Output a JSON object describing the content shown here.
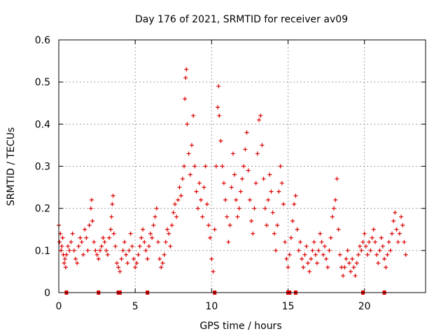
{
  "chart_data": {
    "type": "scatter",
    "title": "Day 176 of 2021, SRMTID for receiver av09",
    "xlabel": "GPS time / hours",
    "ylabel": "SRMTID / TECUs",
    "xlim": [
      0,
      24
    ],
    "ylim": [
      0,
      0.6
    ],
    "x_ticks": [
      0,
      5,
      10,
      15,
      20
    ],
    "x_tick_labels": [
      "0",
      "5",
      "10",
      "15",
      "20"
    ],
    "y_ticks": [
      0,
      0.1,
      0.2,
      0.3,
      0.4,
      0.5,
      0.6
    ],
    "y_tick_labels": [
      "0",
      "0.1",
      "0.2",
      "0.3",
      "0.4",
      "0.5",
      "0.6"
    ],
    "grid": true,
    "marker": "+",
    "series": [
      {
        "name": "SRMTID",
        "color": "#dd0000",
        "points": [
          [
            0.0,
            0.16
          ],
          [
            0.05,
            0.12
          ],
          [
            0.1,
            0.14
          ],
          [
            0.15,
            0.1
          ],
          [
            0.2,
            0.11
          ],
          [
            0.25,
            0.13
          ],
          [
            0.3,
            0.09
          ],
          [
            0.35,
            0.07
          ],
          [
            0.4,
            0.08
          ],
          [
            0.45,
            0.06
          ],
          [
            0.5,
            0.09
          ],
          [
            0.6,
            0.11
          ],
          [
            0.7,
            0.1
          ],
          [
            0.8,
            0.12
          ],
          [
            0.9,
            0.14
          ],
          [
            1.0,
            0.1
          ],
          [
            1.1,
            0.08
          ],
          [
            1.2,
            0.07
          ],
          [
            1.3,
            0.11
          ],
          [
            1.4,
            0.13
          ],
          [
            1.5,
            0.12
          ],
          [
            1.6,
            0.09
          ],
          [
            1.7,
            0.15
          ],
          [
            1.8,
            0.13
          ],
          [
            1.9,
            0.1
          ],
          [
            2.0,
            0.16
          ],
          [
            2.1,
            0.2
          ],
          [
            2.15,
            0.22
          ],
          [
            2.2,
            0.17
          ],
          [
            2.3,
            0.12
          ],
          [
            2.4,
            0.1
          ],
          [
            2.5,
            0.09
          ],
          [
            2.6,
            0.08
          ],
          [
            2.7,
            0.1
          ],
          [
            2.8,
            0.11
          ],
          [
            2.9,
            0.13
          ],
          [
            3.0,
            0.12
          ],
          [
            3.1,
            0.1
          ],
          [
            3.2,
            0.09
          ],
          [
            3.3,
            0.13
          ],
          [
            3.4,
            0.15
          ],
          [
            3.45,
            0.18
          ],
          [
            3.5,
            0.21
          ],
          [
            3.55,
            0.23
          ],
          [
            3.6,
            0.14
          ],
          [
            3.7,
            0.11
          ],
          [
            3.8,
            0.07
          ],
          [
            3.9,
            0.06
          ],
          [
            4.0,
            0.05
          ],
          [
            4.1,
            0.08
          ],
          [
            4.2,
            0.1
          ],
          [
            4.3,
            0.12
          ],
          [
            4.4,
            0.09
          ],
          [
            4.5,
            0.07
          ],
          [
            4.6,
            0.1
          ],
          [
            4.7,
            0.14
          ],
          [
            4.8,
            0.11
          ],
          [
            4.9,
            0.08
          ],
          [
            5.0,
            0.06
          ],
          [
            5.1,
            0.07
          ],
          [
            5.2,
            0.09
          ],
          [
            5.3,
            0.11
          ],
          [
            5.4,
            0.13
          ],
          [
            5.5,
            0.15
          ],
          [
            5.6,
            0.12
          ],
          [
            5.7,
            0.1
          ],
          [
            5.8,
            0.08
          ],
          [
            5.9,
            0.11
          ],
          [
            6.0,
            0.14
          ],
          [
            6.1,
            0.13
          ],
          [
            6.2,
            0.16
          ],
          [
            6.3,
            0.18
          ],
          [
            6.4,
            0.2
          ],
          [
            6.5,
            0.12
          ],
          [
            6.6,
            0.08
          ],
          [
            6.7,
            0.06
          ],
          [
            6.8,
            0.07
          ],
          [
            6.9,
            0.09
          ],
          [
            7.0,
            0.12
          ],
          [
            7.1,
            0.15
          ],
          [
            7.2,
            0.14
          ],
          [
            7.3,
            0.11
          ],
          [
            7.4,
            0.16
          ],
          [
            7.5,
            0.19
          ],
          [
            7.6,
            0.21
          ],
          [
            7.7,
            0.18
          ],
          [
            7.8,
            0.22
          ],
          [
            7.9,
            0.25
          ],
          [
            8.0,
            0.23
          ],
          [
            8.1,
            0.27
          ],
          [
            8.2,
            0.3
          ],
          [
            8.25,
            0.46
          ],
          [
            8.3,
            0.51
          ],
          [
            8.35,
            0.53
          ],
          [
            8.4,
            0.4
          ],
          [
            8.5,
            0.33
          ],
          [
            8.6,
            0.28
          ],
          [
            8.7,
            0.35
          ],
          [
            8.8,
            0.42
          ],
          [
            8.9,
            0.3
          ],
          [
            9.0,
            0.24
          ],
          [
            9.1,
            0.2
          ],
          [
            9.2,
            0.26
          ],
          [
            9.3,
            0.22
          ],
          [
            9.4,
            0.18
          ],
          [
            9.5,
            0.25
          ],
          [
            9.6,
            0.3
          ],
          [
            9.7,
            0.21
          ],
          [
            9.8,
            0.16
          ],
          [
            9.9,
            0.13
          ],
          [
            10.0,
            0.08
          ],
          [
            10.1,
            0.05
          ],
          [
            10.2,
            0.15
          ],
          [
            10.3,
            0.3
          ],
          [
            10.4,
            0.44
          ],
          [
            10.45,
            0.49
          ],
          [
            10.5,
            0.42
          ],
          [
            10.6,
            0.36
          ],
          [
            10.7,
            0.3
          ],
          [
            10.8,
            0.26
          ],
          [
            10.9,
            0.22
          ],
          [
            11.0,
            0.18
          ],
          [
            11.1,
            0.12
          ],
          [
            11.2,
            0.16
          ],
          [
            11.3,
            0.25
          ],
          [
            11.4,
            0.33
          ],
          [
            11.5,
            0.28
          ],
          [
            11.6,
            0.22
          ],
          [
            11.7,
            0.18
          ],
          [
            11.8,
            0.2
          ],
          [
            11.9,
            0.24
          ],
          [
            12.0,
            0.27
          ],
          [
            12.1,
            0.3
          ],
          [
            12.2,
            0.34
          ],
          [
            12.3,
            0.38
          ],
          [
            12.4,
            0.29
          ],
          [
            12.5,
            0.22
          ],
          [
            12.6,
            0.17
          ],
          [
            12.7,
            0.14
          ],
          [
            12.8,
            0.2
          ],
          [
            12.9,
            0.26
          ],
          [
            13.0,
            0.33
          ],
          [
            13.1,
            0.41
          ],
          [
            13.2,
            0.42
          ],
          [
            13.3,
            0.35
          ],
          [
            13.4,
            0.27
          ],
          [
            13.5,
            0.2
          ],
          [
            13.6,
            0.16
          ],
          [
            13.7,
            0.22
          ],
          [
            13.8,
            0.28
          ],
          [
            13.9,
            0.24
          ],
          [
            14.0,
            0.19
          ],
          [
            14.1,
            0.14
          ],
          [
            14.2,
            0.1
          ],
          [
            14.3,
            0.16
          ],
          [
            14.4,
            0.24
          ],
          [
            14.5,
            0.3
          ],
          [
            14.6,
            0.26
          ],
          [
            14.7,
            0.21
          ],
          [
            14.8,
            0.12
          ],
          [
            14.9,
            0.08
          ],
          [
            15.0,
            0.06
          ],
          [
            15.1,
            0.09
          ],
          [
            15.2,
            0.13
          ],
          [
            15.3,
            0.17
          ],
          [
            15.4,
            0.21
          ],
          [
            15.5,
            0.23
          ],
          [
            15.6,
            0.15
          ],
          [
            15.7,
            0.1
          ],
          [
            15.8,
            0.12
          ],
          [
            15.9,
            0.08
          ],
          [
            16.0,
            0.06
          ],
          [
            16.1,
            0.09
          ],
          [
            16.2,
            0.11
          ],
          [
            16.3,
            0.07
          ],
          [
            16.4,
            0.05
          ],
          [
            16.5,
            0.08
          ],
          [
            16.6,
            0.1
          ],
          [
            16.7,
            0.12
          ],
          [
            16.8,
            0.09
          ],
          [
            16.9,
            0.07
          ],
          [
            17.0,
            0.1
          ],
          [
            17.1,
            0.14
          ],
          [
            17.2,
            0.12
          ],
          [
            17.3,
            0.09
          ],
          [
            17.4,
            0.11
          ],
          [
            17.5,
            0.08
          ],
          [
            17.6,
            0.06
          ],
          [
            17.7,
            0.1
          ],
          [
            17.8,
            0.13
          ],
          [
            17.9,
            0.18
          ],
          [
            18.0,
            0.2
          ],
          [
            18.1,
            0.22
          ],
          [
            18.2,
            0.27
          ],
          [
            18.3,
            0.15
          ],
          [
            18.4,
            0.09
          ],
          [
            18.5,
            0.06
          ],
          [
            18.6,
            0.04
          ],
          [
            18.7,
            0.06
          ],
          [
            18.8,
            0.08
          ],
          [
            18.9,
            0.1
          ],
          [
            19.0,
            0.07
          ],
          [
            19.1,
            0.05
          ],
          [
            19.2,
            0.08
          ],
          [
            19.3,
            0.06
          ],
          [
            19.4,
            0.04
          ],
          [
            19.5,
            0.07
          ],
          [
            19.6,
            0.09
          ],
          [
            19.7,
            0.11
          ],
          [
            19.8,
            0.1
          ],
          [
            19.9,
            0.12
          ],
          [
            20.0,
            0.14
          ],
          [
            20.1,
            0.11
          ],
          [
            20.2,
            0.09
          ],
          [
            20.3,
            0.12
          ],
          [
            20.4,
            0.1
          ],
          [
            20.5,
            0.13
          ],
          [
            20.6,
            0.15
          ],
          [
            20.7,
            0.12
          ],
          [
            20.8,
            0.09
          ],
          [
            20.9,
            0.07
          ],
          [
            21.0,
            0.1
          ],
          [
            21.1,
            0.13
          ],
          [
            21.2,
            0.11
          ],
          [
            21.3,
            0.08
          ],
          [
            21.4,
            0.06
          ],
          [
            21.5,
            0.09
          ],
          [
            21.6,
            0.12
          ],
          [
            21.7,
            0.1
          ],
          [
            21.8,
            0.14
          ],
          [
            21.9,
            0.17
          ],
          [
            22.0,
            0.19
          ],
          [
            22.1,
            0.15
          ],
          [
            22.2,
            0.12
          ],
          [
            22.3,
            0.14
          ],
          [
            22.4,
            0.18
          ],
          [
            22.5,
            0.16
          ],
          [
            22.6,
            0.12
          ],
          [
            22.7,
            0.09
          ]
        ]
      }
    ],
    "baseline_markers": [
      0.5,
      2.6,
      3.9,
      4.0,
      5.8,
      10.2,
      15.0,
      15.1,
      15.5,
      19.9,
      21.3
    ]
  }
}
